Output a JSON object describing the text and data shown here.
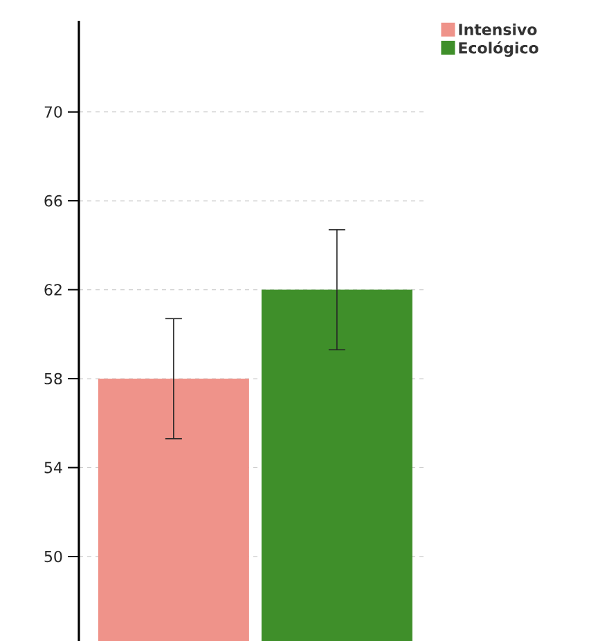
{
  "chart_data": {
    "type": "bar",
    "categories": [
      null,
      null
    ],
    "series": [
      {
        "name": "Intensivo",
        "color": "#ef938a",
        "values": [
          58,
          null
        ],
        "errors": [
          2.7,
          null
        ]
      },
      {
        "name": "Ecológico",
        "color": "#3f8f2a",
        "values": [
          null,
          62
        ],
        "errors": [
          null,
          2.7
        ]
      }
    ],
    "ylim": [
      46.2,
      74.1
    ],
    "yticks": [
      50,
      54,
      58,
      62,
      66,
      70
    ],
    "grid": "y",
    "legend": "top right"
  }
}
